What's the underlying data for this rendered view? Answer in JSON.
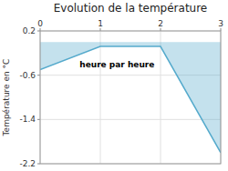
{
  "chart_data": {
    "type": "area",
    "title": "Evolution de la température",
    "y_label": "Température en °C",
    "x": [
      0,
      1,
      2,
      3
    ],
    "values": [
      -0.5,
      -0.08,
      -0.08,
      -2.0
    ],
    "color": "#55aacc",
    "xlim": [
      0,
      3
    ],
    "ylim": [
      -2.2,
      0.2
    ],
    "xticks": [
      0,
      1,
      2,
      3
    ],
    "yticks": [
      0.2,
      -0.6,
      -1.4,
      -2.2
    ],
    "grid": true,
    "annotations": [
      {
        "text": "heure par heure",
        "x": 1.9,
        "y": -0.45
      }
    ]
  }
}
